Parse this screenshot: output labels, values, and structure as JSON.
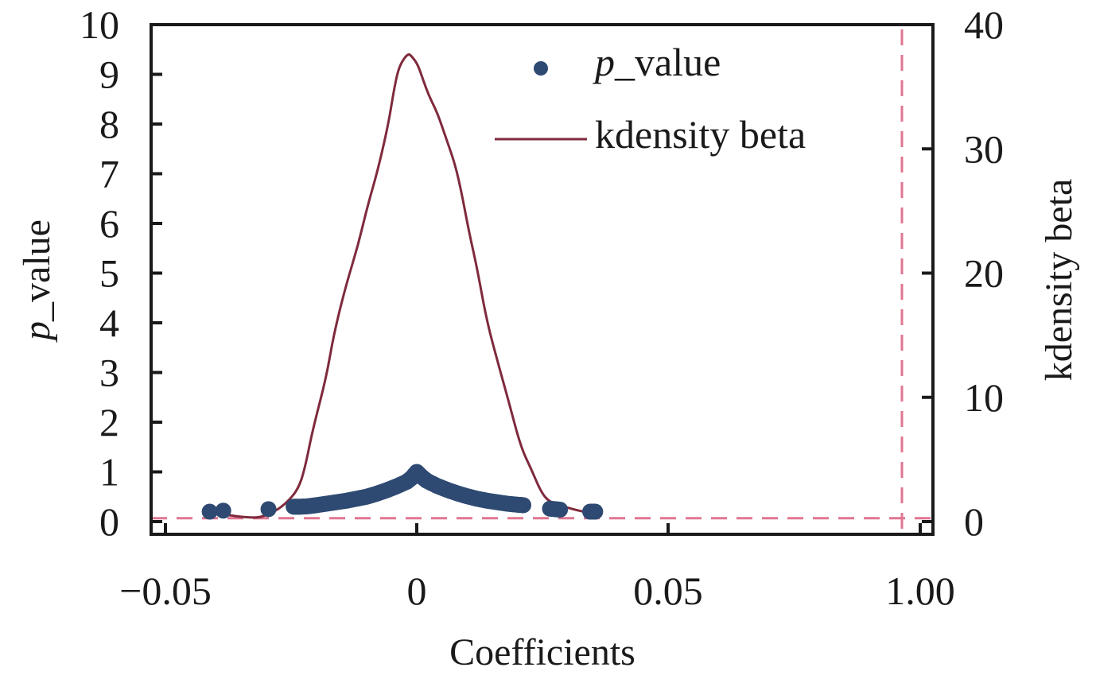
{
  "chart_data": {
    "type": "scatter",
    "title": "",
    "xlabel": "Coefficients",
    "ylabel": "p_value",
    "ylabel_parts": {
      "italic": "p",
      "rest": "_value"
    },
    "y2label": "kdensity beta",
    "xticks": [
      {
        "value": -0.05,
        "label": "−0.05"
      },
      {
        "value": 0,
        "label": "0"
      },
      {
        "value": 0.05,
        "label": "0.05"
      },
      {
        "value": 1.0,
        "label": "1.00"
      }
    ],
    "x_axis_note": "broken axis: scale jumps from about 0.1 to 1.00",
    "xlim": [
      -0.053,
      1.0025
    ],
    "yticks": [
      0,
      1,
      2,
      3,
      4,
      5,
      6,
      7,
      8,
      9,
      10
    ],
    "ylim": [
      -0.25,
      10
    ],
    "y2ticks": [
      0,
      10,
      20,
      30,
      40
    ],
    "y2lim": [
      -1,
      40
    ],
    "grid": false,
    "legend": {
      "placement": "top-center",
      "entries": [
        {
          "marker": "dot",
          "label_italic": "p",
          "label_rest": "_value",
          "color": "#2e4a72"
        },
        {
          "marker": "line",
          "label": "kdensity beta",
          "color": "#7f2a3c"
        }
      ]
    },
    "reference_lines": [
      {
        "orientation": "horizontal",
        "axis": "y",
        "value": 0.1,
        "style": "dashed",
        "color": "#e07690"
      },
      {
        "orientation": "vertical",
        "axis": "x",
        "value": 0.99,
        "style": "dashed",
        "color": "#e07690"
      }
    ],
    "series": [
      {
        "name": "p_value",
        "kind": "scatter",
        "axis": "left",
        "color": "#2e4a72",
        "points": [
          [
            -0.0412,
            0.2
          ],
          [
            -0.0385,
            0.22
          ],
          [
            -0.0295,
            0.25
          ],
          [
            -0.0245,
            0.3
          ],
          [
            -0.023,
            0.3
          ],
          [
            -0.0215,
            0.31
          ],
          [
            -0.02,
            0.33
          ],
          [
            -0.018,
            0.36
          ],
          [
            -0.016,
            0.39
          ],
          [
            -0.014,
            0.42
          ],
          [
            -0.012,
            0.46
          ],
          [
            -0.01,
            0.5
          ],
          [
            -0.008,
            0.56
          ],
          [
            -0.006,
            0.63
          ],
          [
            -0.004,
            0.71
          ],
          [
            -0.002,
            0.8
          ],
          [
            -0.001,
            0.88
          ],
          [
            0.0,
            1.0
          ],
          [
            0.001,
            0.9
          ],
          [
            0.002,
            0.82
          ],
          [
            0.004,
            0.72
          ],
          [
            0.006,
            0.64
          ],
          [
            0.008,
            0.57
          ],
          [
            0.01,
            0.51
          ],
          [
            0.012,
            0.46
          ],
          [
            0.014,
            0.42
          ],
          [
            0.016,
            0.39
          ],
          [
            0.018,
            0.36
          ],
          [
            0.02,
            0.34
          ],
          [
            0.0212,
            0.33
          ],
          [
            0.0265,
            0.26
          ],
          [
            0.0285,
            0.24
          ],
          [
            0.0345,
            0.2
          ],
          [
            0.0355,
            0.2
          ]
        ]
      },
      {
        "name": "kdensity beta",
        "kind": "line",
        "axis": "right",
        "color": "#7f2a3c",
        "points": [
          [
            -0.0399,
            0.6
          ],
          [
            -0.037,
            0.5
          ],
          [
            -0.0354,
            0.4
          ],
          [
            -0.0323,
            0.3
          ],
          [
            -0.0307,
            0.4
          ],
          [
            -0.0283,
            0.8
          ],
          [
            -0.0259,
            1.5
          ],
          [
            -0.0236,
            2.6
          ],
          [
            -0.0223,
            4.2
          ],
          [
            -0.0207,
            7.4
          ],
          [
            -0.018,
            11.6
          ],
          [
            -0.0165,
            15.1
          ],
          [
            -0.0141,
            19.0
          ],
          [
            -0.0117,
            22.2
          ],
          [
            -0.0098,
            25.4
          ],
          [
            -0.0078,
            28.2
          ],
          [
            -0.0057,
            31.9
          ],
          [
            -0.0046,
            34.6
          ],
          [
            -0.0038,
            36.2
          ],
          [
            -0.003,
            37.0
          ],
          [
            -0.0017,
            37.7
          ],
          [
            -0.0009,
            37.4
          ],
          [
            0.0002,
            36.8
          ],
          [
            0.0013,
            35.5
          ],
          [
            0.0025,
            34.2
          ],
          [
            0.0041,
            32.9
          ],
          [
            0.0057,
            31.0
          ],
          [
            0.0076,
            28.8
          ],
          [
            0.0089,
            26.5
          ],
          [
            0.0104,
            23.3
          ],
          [
            0.012,
            20.4
          ],
          [
            0.0139,
            16.2
          ],
          [
            0.016,
            13.0
          ],
          [
            0.0184,
            9.5
          ],
          [
            0.0207,
            6.0
          ],
          [
            0.0228,
            4.2
          ],
          [
            0.0247,
            2.4
          ],
          [
            0.0263,
            1.6
          ],
          [
            0.0286,
            1.3
          ],
          [
            0.031,
            1.0
          ],
          [
            0.0342,
            0.7
          ]
        ]
      }
    ]
  }
}
